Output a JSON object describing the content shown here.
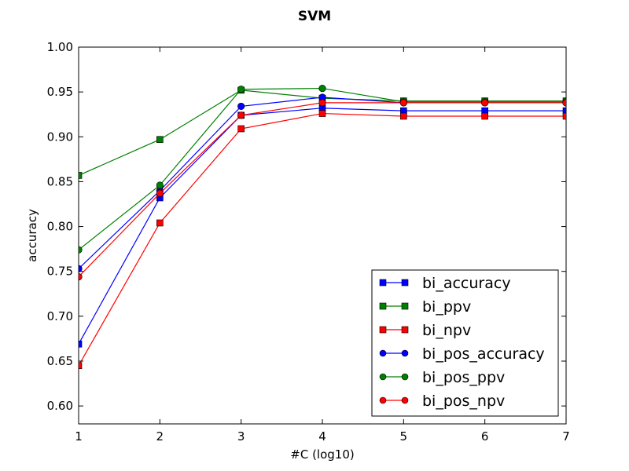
{
  "chart_data": {
    "type": "line",
    "title": "SVM",
    "xlabel": "#C (log10)",
    "ylabel": "accuracy",
    "x": [
      1,
      2,
      3,
      4,
      5,
      6,
      7
    ],
    "xlim": [
      1,
      7
    ],
    "ylim": [
      0.58,
      1.0
    ],
    "x_ticks": [
      "1",
      "2",
      "3",
      "4",
      "5",
      "6",
      "7"
    ],
    "y_ticks": [
      "0.60",
      "0.65",
      "0.70",
      "0.75",
      "0.80",
      "0.85",
      "0.90",
      "0.95",
      "1.00"
    ],
    "grid": false,
    "legend_position": "lower-right",
    "series": [
      {
        "name": "bi_accuracy",
        "color": "#0000ff",
        "marker": "square",
        "values": [
          0.669,
          0.832,
          0.924,
          0.932,
          0.929,
          0.929,
          0.929
        ]
      },
      {
        "name": "bi_ppv",
        "color": "#008000",
        "marker": "square",
        "values": [
          0.857,
          0.897,
          0.952,
          0.943,
          0.94,
          0.94,
          0.94
        ]
      },
      {
        "name": "bi_npv",
        "color": "#ff0000",
        "marker": "square",
        "values": [
          0.645,
          0.804,
          0.909,
          0.926,
          0.923,
          0.923,
          0.923
        ]
      },
      {
        "name": "bi_pos_accuracy",
        "color": "#0000ff",
        "marker": "circle",
        "values": [
          0.753,
          0.84,
          0.934,
          0.944,
          0.938,
          0.938,
          0.938
        ]
      },
      {
        "name": "bi_pos_ppv",
        "color": "#008000",
        "marker": "circle",
        "values": [
          0.774,
          0.846,
          0.953,
          0.954,
          0.939,
          0.939,
          0.939
        ]
      },
      {
        "name": "bi_pos_npv",
        "color": "#ff0000",
        "marker": "circle",
        "values": [
          0.744,
          0.837,
          0.924,
          0.938,
          0.938,
          0.938,
          0.938
        ]
      }
    ]
  }
}
